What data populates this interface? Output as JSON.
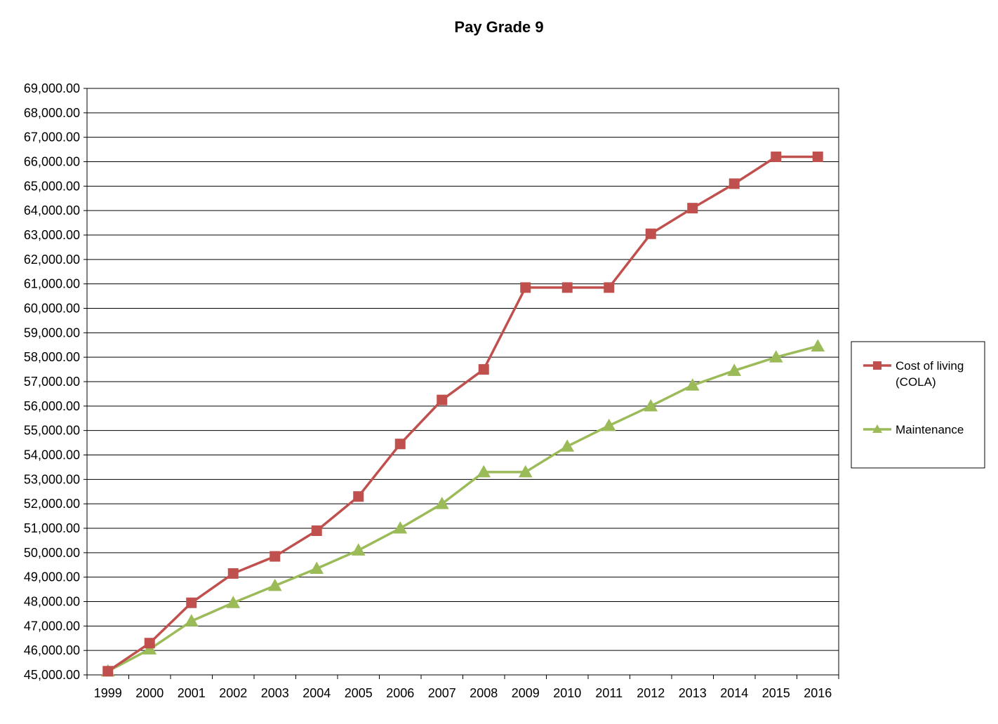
{
  "chart_data": {
    "type": "line",
    "title": "Pay Grade 9",
    "xlabel": "",
    "ylabel": "",
    "ylim": [
      45000,
      69000
    ],
    "ytick_step": 1000,
    "grid": true,
    "legend_position": "right",
    "categories": [
      "1999",
      "2000",
      "2001",
      "2002",
      "2003",
      "2004",
      "2005",
      "2006",
      "2007",
      "2008",
      "2009",
      "2010",
      "2011",
      "2012",
      "2013",
      "2014",
      "2015",
      "2016"
    ],
    "ytick_labels": [
      "69,000.00",
      "68,000.00",
      "67,000.00",
      "66,000.00",
      "65,000.00",
      "64,000.00",
      "63,000.00",
      "62,000.00",
      "61,000.00",
      "60,000.00",
      "59,000.00",
      "58,000.00",
      "57,000.00",
      "56,000.00",
      "55,000.00",
      "54,000.00",
      "53,000.00",
      "52,000.00",
      "51,000.00",
      "50,000.00",
      "49,000.00",
      "48,000.00",
      "47,000.00",
      "46,000.00",
      "45,000.00"
    ],
    "series": [
      {
        "name": "Cost of living (COLA)",
        "legend_lines": [
          "Cost of living",
          "(COLA)"
        ],
        "color": "#C0504D",
        "marker": "square",
        "values": [
          45150,
          46300,
          47950,
          49150,
          49850,
          50900,
          52300,
          54450,
          56250,
          57500,
          60850,
          60850,
          60850,
          63050,
          64100,
          65100,
          66200,
          66200
        ]
      },
      {
        "name": "Maintenance",
        "legend_lines": [
          "Maintenance"
        ],
        "color": "#9BBB59",
        "marker": "triangle",
        "values": [
          45150,
          46050,
          47200,
          47950,
          48650,
          49350,
          50100,
          51000,
          52000,
          53300,
          53300,
          54350,
          55200,
          56000,
          56850,
          57450,
          58000,
          58450
        ]
      }
    ]
  }
}
